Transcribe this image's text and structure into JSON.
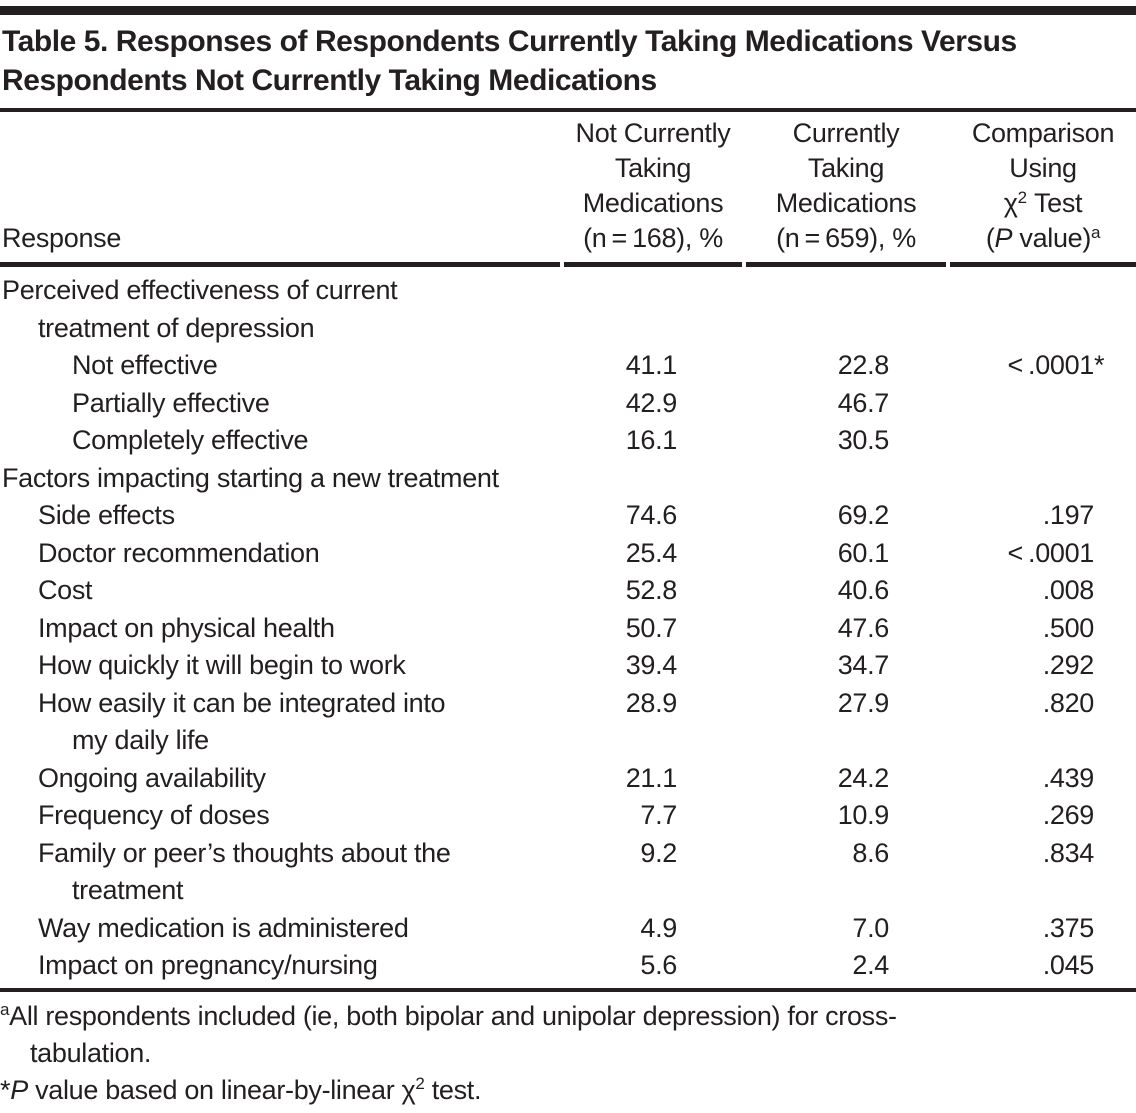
{
  "title": "Table 5. Responses of Respondents Currently Taking Medications Versus Respondents Not Currently Taking Medications",
  "header": {
    "response": "Response",
    "col2_lines": [
      "Not Currently",
      "Taking",
      "Medications",
      "(n = 168), %"
    ],
    "col3_lines": [
      "Currently",
      "Taking",
      "Medications",
      "(n = 659), %"
    ],
    "col4": {
      "line1": "Comparison",
      "line2": "Using",
      "chi": "χ",
      "chi_sup": "2",
      "chi_rest": " Test",
      "p_pre": "(",
      "p_italic": "P",
      "p_post": " value)",
      "p_sup": "a"
    }
  },
  "rows": [
    {
      "lines": [
        [
          "Perceived effectiveness of current",
          0
        ],
        [
          "treatment of depression",
          1
        ]
      ],
      "v1": "",
      "v2": "",
      "p": ""
    },
    {
      "lines": [
        [
          "Not effective",
          2
        ]
      ],
      "v1": "41.1",
      "v2": "22.8",
      "p": "< .0001*"
    },
    {
      "lines": [
        [
          "Partially effective",
          2
        ]
      ],
      "v1": "42.9",
      "v2": "46.7",
      "p": ""
    },
    {
      "lines": [
        [
          "Completely effective",
          2
        ]
      ],
      "v1": "16.1",
      "v2": "30.5",
      "p": ""
    },
    {
      "lines": [
        [
          "Factors impacting starting a new treatment",
          0
        ]
      ],
      "v1": "",
      "v2": "",
      "p": ""
    },
    {
      "lines": [
        [
          "Side effects",
          1
        ]
      ],
      "v1": "74.6",
      "v2": "69.2",
      "p": ".197"
    },
    {
      "lines": [
        [
          "Doctor recommendation",
          1
        ]
      ],
      "v1": "25.4",
      "v2": "60.1",
      "p": "< .0001"
    },
    {
      "lines": [
        [
          "Cost",
          1
        ]
      ],
      "v1": "52.8",
      "v2": "40.6",
      "p": ".008"
    },
    {
      "lines": [
        [
          "Impact on physical health",
          1
        ]
      ],
      "v1": "50.7",
      "v2": "47.6",
      "p": ".500"
    },
    {
      "lines": [
        [
          "How quickly it will begin to work",
          1
        ]
      ],
      "v1": "39.4",
      "v2": "34.7",
      "p": ".292"
    },
    {
      "lines": [
        [
          "How easily it can be integrated into",
          1
        ],
        [
          "my daily life",
          2
        ]
      ],
      "v1": "28.9",
      "v2": "27.9",
      "p": ".820"
    },
    {
      "lines": [
        [
          "Ongoing availability",
          1
        ]
      ],
      "v1": "21.1",
      "v2": "24.2",
      "p": ".439"
    },
    {
      "lines": [
        [
          "Frequency of doses",
          1
        ]
      ],
      "v1": "7.7",
      "v2": "10.9",
      "p": ".269"
    },
    {
      "lines": [
        [
          "Family or peer’s thoughts about the",
          1
        ],
        [
          "treatment",
          2
        ]
      ],
      "v1": "9.2",
      "v2": "8.6",
      "p": ".834"
    },
    {
      "lines": [
        [
          "Way medication is administered",
          1
        ]
      ],
      "v1": "4.9",
      "v2": "7.0",
      "p": ".375"
    },
    {
      "lines": [
        [
          "Impact on pregnancy/nursing",
          1
        ]
      ],
      "v1": "5.6",
      "v2": "2.4",
      "p": ".045"
    }
  ],
  "footnotes": {
    "a_sup": "a",
    "a_line1": "All respondents included (ie, both bipolar and unipolar depression) for cross-",
    "a_line2": "tabulation.",
    "star": "*",
    "star_p_italic": "P",
    "star_mid": " value based on linear-by-linear χ",
    "star_sup": "2",
    "star_end": " test."
  }
}
